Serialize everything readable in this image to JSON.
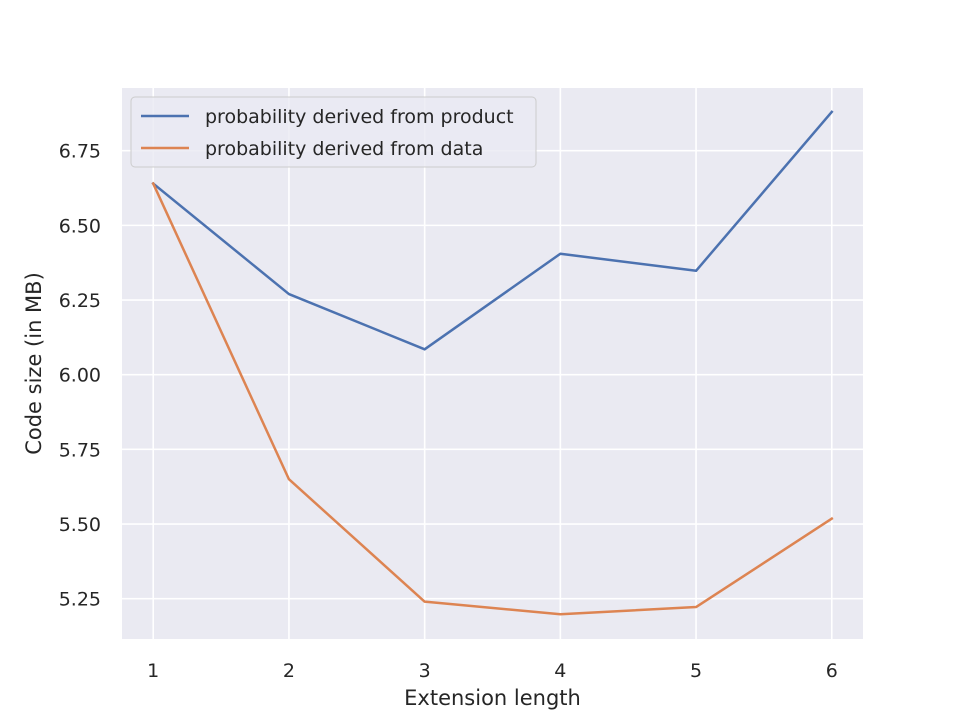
{
  "chart_data": {
    "type": "line",
    "title": "",
    "xlabel": "Extension length",
    "ylabel": "Code size (in MB)",
    "x": [
      1,
      2,
      3,
      4,
      5,
      6
    ],
    "xlim": [
      0.77,
      6.23
    ],
    "ylim": [
      5.115,
      6.96
    ],
    "xticks": [
      1,
      2,
      3,
      4,
      5,
      6
    ],
    "yticks": [
      5.25,
      5.5,
      5.75,
      6.0,
      6.25,
      6.5,
      6.75
    ],
    "ytick_labels": [
      "5.25",
      "5.50",
      "5.75",
      "6.00",
      "6.25",
      "6.50",
      "6.75"
    ],
    "grid": true,
    "legend_position": "upper-left",
    "background_color": "#eaeaf2",
    "series": [
      {
        "name": "probability derived from product",
        "color": "#4c72b0",
        "values": [
          6.64,
          6.27,
          6.085,
          6.405,
          6.348,
          6.88
        ]
      },
      {
        "name": "probability derived from data",
        "color": "#dd8452",
        "values": [
          6.64,
          5.65,
          5.24,
          5.198,
          5.222,
          5.518
        ]
      }
    ]
  }
}
